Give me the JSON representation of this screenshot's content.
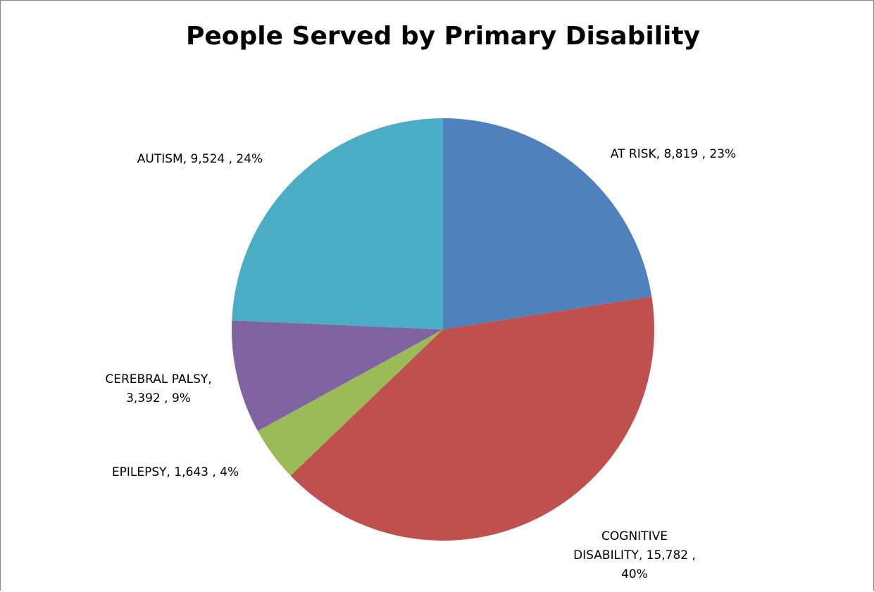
{
  "chart_data": {
    "type": "pie",
    "title": "People Served by Primary Disability",
    "start_angle_deg": 0,
    "direction": "clockwise",
    "slices": [
      {
        "name": "AT RISK",
        "value": 8819,
        "value_label": "8,819",
        "percent_label": "23%",
        "color": "#4F81BD",
        "label_lines": [
          "AT RISK,  8,819 , 23%"
        ]
      },
      {
        "name": "COGNITIVE DISABILITY",
        "value": 15782,
        "value_label": "15,782",
        "percent_label": "40%",
        "color": "#C0504D",
        "label_lines": [
          "COGNITIVE",
          "DISABILITY,  15,782 ,",
          "40%"
        ]
      },
      {
        "name": "EPILEPSY",
        "value": 1643,
        "value_label": "1,643",
        "percent_label": "4%",
        "color": "#9BBB59",
        "label_lines": [
          "EPILEPSY,  1,643 , 4%"
        ]
      },
      {
        "name": "CEREBRAL PALSY",
        "value": 3392,
        "value_label": "3,392",
        "percent_label": "9%",
        "color": "#8064A2",
        "label_lines": [
          "CEREBRAL PALSY,",
          "3,392 , 9%"
        ]
      },
      {
        "name": "AUTISM",
        "value": 9524,
        "value_label": "9,524",
        "percent_label": "24%",
        "color": "#4BACC6",
        "label_lines": [
          "AUTISM,  9,524 , 24%"
        ]
      }
    ],
    "legend": "none"
  }
}
